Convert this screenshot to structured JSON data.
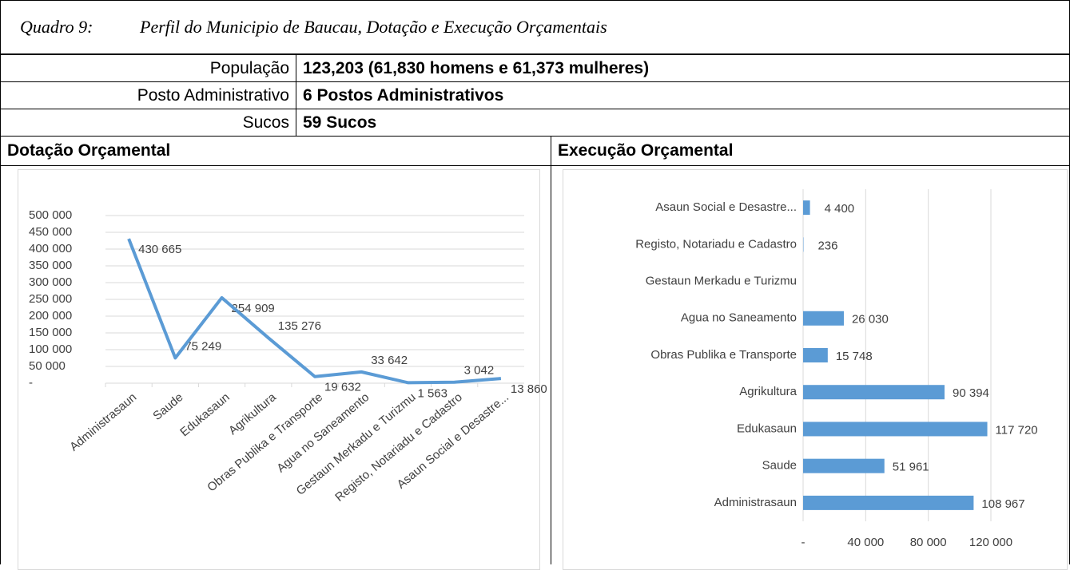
{
  "title": {
    "number": "Quadro 9:",
    "text": "Perfil do Municipio de Baucau, Dotação e Execução Orçamentais"
  },
  "profile": [
    {
      "label": "População",
      "value": "123,203 (61,830 homens e 61,373 mulheres)"
    },
    {
      "label": "Posto Administrativo",
      "value": "6 Postos Administrativos"
    },
    {
      "label": "Sucos",
      "value": "59 Sucos"
    }
  ],
  "sections": [
    "Dotação Orçamental",
    "Execução Orçamental"
  ],
  "chart_data": [
    {
      "type": "line",
      "color": "#5b9bd5",
      "grid": true,
      "categories": [
        "Administrasaun",
        "Saude",
        "Edukasaun",
        "Agrikultura",
        "Obras Publika e Transporte",
        "Agua no Saneamento",
        "Gestaun Merkadu e Turizmu",
        "Registo, Notariadu e Cadastro",
        "Asaun Social e  Desastre..."
      ],
      "values": [
        430665,
        75249,
        254909,
        135276,
        19632,
        33642,
        1563,
        3042,
        13860
      ],
      "value_labels": [
        "430 665",
        "75 249",
        "254 909",
        "135 276",
        "19 632",
        "33 642",
        "1 563",
        "3 042",
        "13 860"
      ],
      "ylim": [
        0,
        500000
      ],
      "yticks": [
        {
          "value": 0,
          "label": "-"
        },
        {
          "value": 50000,
          "label": "50 000"
        },
        {
          "value": 100000,
          "label": "100 000"
        },
        {
          "value": 150000,
          "label": "150 000"
        },
        {
          "value": 200000,
          "label": "200 000"
        },
        {
          "value": 250000,
          "label": "250 000"
        },
        {
          "value": 300000,
          "label": "300 000"
        },
        {
          "value": 350000,
          "label": "350 000"
        },
        {
          "value": 400000,
          "label": "400 000"
        },
        {
          "value": 450000,
          "label": "450 000"
        },
        {
          "value": 500000,
          "label": "500 000"
        }
      ]
    },
    {
      "type": "hbar",
      "color": "#5b9bd5",
      "grid": true,
      "categories": [
        "Administrasaun",
        "Saude",
        "Edukasaun",
        "Agrikultura",
        "Obras Publika e Transporte",
        "Agua no Saneamento",
        "Gestaun Merkadu e Turizmu",
        "Registo, Notariadu e Cadastro",
        "Asaun Social e  Desastre..."
      ],
      "values": [
        108967,
        51961,
        117720,
        90394,
        15748,
        26030,
        null,
        236,
        4400
      ],
      "value_labels": [
        "108 967",
        "51 961",
        "117 720",
        "90 394",
        "15 748",
        "26 030",
        null,
        "236",
        "4 400"
      ],
      "xlim": [
        0,
        120000
      ],
      "xticks": [
        {
          "value": 0,
          "label": "-"
        },
        {
          "value": 40000,
          "label": "40 000"
        },
        {
          "value": 80000,
          "label": "80 000"
        },
        {
          "value": 120000,
          "label": "120 000"
        }
      ]
    }
  ]
}
